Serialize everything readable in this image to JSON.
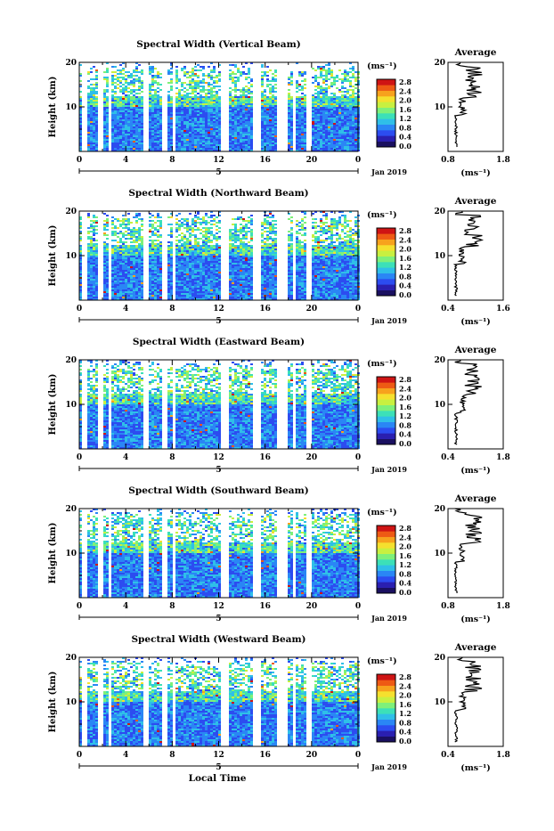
{
  "footer": {
    "xlabel": "Local Time"
  },
  "chart_data": [
    {
      "type": "heatmap",
      "title": "Spectral Width (Vertical Beam)",
      "ylabel": "Height (km)",
      "x_ticks": [
        "0",
        "4",
        "8",
        "12",
        "16",
        "20",
        "0"
      ],
      "y_ticks": [
        "10",
        "20"
      ],
      "date_marker": "5",
      "date_label": "Jan 2019",
      "colorbar": {
        "unit": "(ms⁻¹)",
        "ticks": [
          "0.0",
          "0.4",
          "0.8",
          "1.2",
          "1.6",
          "2.0",
          "2.4",
          "2.8"
        ]
      },
      "average": {
        "title": "Average",
        "xlabel": "(ms⁻¹)",
        "x_ticks": [
          "0.8",
          "1.8"
        ],
        "xlim": [
          0.8,
          1.8
        ],
        "y_ticks": [
          "10",
          "20"
        ]
      }
    },
    {
      "type": "heatmap",
      "title": "Spectral Width (Northward Beam)",
      "ylabel": "Height (km)",
      "x_ticks": [
        "0",
        "4",
        "8",
        "12",
        "16",
        "20",
        "0"
      ],
      "y_ticks": [
        "10",
        "20"
      ],
      "date_marker": "5",
      "date_label": "Jan 2019",
      "colorbar": {
        "unit": "(ms⁻¹)",
        "ticks": [
          "0.0",
          "0.4",
          "0.8",
          "1.2",
          "1.6",
          "2.0",
          "2.4",
          "2.8"
        ]
      },
      "average": {
        "title": "Average",
        "xlabel": "(ms⁻¹)",
        "x_ticks": [
          "0.4",
          "1.6"
        ],
        "xlim": [
          0.4,
          1.6
        ],
        "y_ticks": [
          "10",
          "20"
        ]
      }
    },
    {
      "type": "heatmap",
      "title": "Spectral Width (Eastward Beam)",
      "ylabel": "Height (km)",
      "x_ticks": [
        "0",
        "4",
        "8",
        "12",
        "16",
        "20",
        "0"
      ],
      "y_ticks": [
        "10",
        "20"
      ],
      "date_marker": "5",
      "date_label": "Jan 2019",
      "colorbar": {
        "unit": "(ms⁻¹)",
        "ticks": [
          "0.0",
          "0.4",
          "0.8",
          "1.2",
          "1.6",
          "2.0",
          "2.4",
          "2.8"
        ]
      },
      "average": {
        "title": "Average",
        "xlabel": "(ms⁻¹)",
        "x_ticks": [
          "0.4",
          "1.8"
        ],
        "xlim": [
          0.4,
          1.8
        ],
        "y_ticks": [
          "10",
          "20"
        ]
      }
    },
    {
      "type": "heatmap",
      "title": "Spectral Width (Southward Beam)",
      "ylabel": "Height (km)",
      "x_ticks": [
        "0",
        "4",
        "8",
        "12",
        "16",
        "20",
        "0"
      ],
      "y_ticks": [
        "10",
        "20"
      ],
      "date_marker": "5",
      "date_label": "Jan 2019",
      "colorbar": {
        "unit": "(ms⁻¹)",
        "ticks": [
          "0.0",
          "0.4",
          "0.8",
          "1.2",
          "1.6",
          "2.0",
          "2.4",
          "2.8"
        ]
      },
      "average": {
        "title": "Average",
        "xlabel": "(ms⁻¹)",
        "x_ticks": [
          "0.8",
          "1.8"
        ],
        "xlim": [
          0.8,
          1.8
        ],
        "y_ticks": [
          "10",
          "20"
        ]
      }
    },
    {
      "type": "heatmap",
      "title": "Spectral Width (Westward Beam)",
      "ylabel": "Height (km)",
      "x_ticks": [
        "0",
        "4",
        "8",
        "12",
        "16",
        "20",
        "0"
      ],
      "y_ticks": [
        "10",
        "20"
      ],
      "date_marker": "5",
      "date_label": "Jan 2019",
      "colorbar": {
        "unit": "(ms⁻¹)",
        "ticks": [
          "0.0",
          "0.4",
          "0.8",
          "1.2",
          "1.6",
          "2.0",
          "2.4",
          "2.8"
        ]
      },
      "average": {
        "title": "Average",
        "xlabel": "(ms⁻¹)",
        "x_ticks": [
          "0.4",
          "1.8"
        ],
        "xlim": [
          0.4,
          1.8
        ],
        "y_ticks": [
          "10",
          "20"
        ]
      }
    }
  ]
}
